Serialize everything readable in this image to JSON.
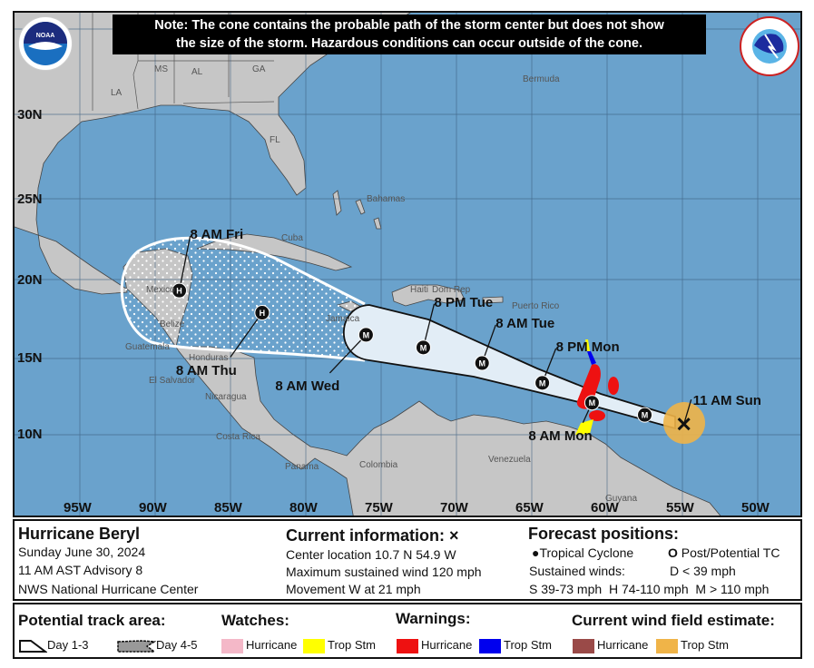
{
  "note": {
    "line1": "Note: The cone contains the probable path of the storm center but does not show",
    "line2": "the size of the storm. Hazardous conditions can occur outside of the cone."
  },
  "logos": {
    "noaa": "NOAA",
    "nws": "NATIONAL WEATHER SERVICE"
  },
  "colors": {
    "ocean": "#6aa2cc",
    "land": "#c6c6c6",
    "cone_day13": "#e2edf6",
    "watch_hurricane": "#f4b8c8",
    "watch_trop_stm": "#ffff00",
    "warn_hurricane": "#ee1111",
    "warn_trop_stm": "#0000ee",
    "wind_hurricane": "#9a4a48",
    "wind_trop_stm": "#f0b448"
  },
  "map": {
    "lat_labels": [
      "30N",
      "25N",
      "20N",
      "15N",
      "10N"
    ],
    "lon_labels": [
      "95W",
      "90W",
      "85W",
      "80W",
      "75W",
      "70W",
      "65W",
      "60W",
      "55W",
      "50W"
    ],
    "places": {
      "ms": "MS",
      "al": "AL",
      "ga": "GA",
      "la": "LA",
      "fl": "FL",
      "bermuda": "Bermuda",
      "bahamas": "Bahamas",
      "cuba": "Cuba",
      "haiti": "Haiti",
      "dom": "Dom Rep",
      "puerto_rico": "Puerto Rico",
      "jamaica": "Jamaica",
      "mexico": "Mexico",
      "belize": "Belize",
      "guatemala": "Guatemala",
      "honduras": "Honduras",
      "el_salvador": "El Salvador",
      "nicaragua": "Nicaragua",
      "costa_rica": "Costa Rica",
      "panama": "Panama",
      "colombia": "Colombia",
      "venezuela": "Venezuela",
      "guyana": "Guyana"
    },
    "current": {
      "label": "11 AM Sun",
      "lat": 10.7,
      "lon": -54.9,
      "icon": "x-mark"
    },
    "track": [
      {
        "label": "",
        "symbol": "M",
        "lat": 11.3,
        "lon": -57.5
      },
      {
        "label": "8 AM Mon",
        "symbol": "M",
        "lat": 12.1,
        "lon": -61.0
      },
      {
        "label": "8 PM Mon",
        "symbol": "M",
        "lat": 13.4,
        "lon": -64.3
      },
      {
        "label": "8 AM Tue",
        "symbol": "M",
        "lat": 14.7,
        "lon": -68.3
      },
      {
        "label": "8 PM Tue",
        "symbol": "M",
        "lat": 15.7,
        "lon": -72.2
      },
      {
        "label": "8 AM Wed",
        "symbol": "M",
        "lat": 16.5,
        "lon": -76.0
      },
      {
        "label": "8 AM Thu",
        "symbol": "H",
        "lat": 17.9,
        "lon": -82.9
      },
      {
        "label": "8 AM Fri",
        "symbol": "H",
        "lat": 19.3,
        "lon": -88.4
      }
    ]
  },
  "info": {
    "storm_name": "Hurricane Beryl",
    "date": "Sunday June 30, 2024",
    "advisory": "11 AM AST Advisory 8",
    "center": "NWS National Hurricane Center",
    "current_title": "Current information: ×",
    "location": "Center location 10.7 N 54.9 W",
    "max_wind": "Maximum sustained wind 120 mph",
    "movement": "Movement W at 21 mph",
    "forecast_title": "Forecast positions:",
    "tc": "Tropical Cyclone",
    "post_tc": "Post/Potential TC",
    "sustained": "Sustained winds:",
    "d": "D < 39 mph",
    "shm": "S 39-73 mph  H 74-110 mph  M > 110 mph"
  },
  "legend": {
    "track_title": "Potential track area:",
    "day13": "Day 1-3",
    "day45": "Day 4-5",
    "watches_title": "Watches:",
    "warnings_title": "Warnings:",
    "wind_title": "Current wind field estimate:",
    "hurricane": "Hurricane",
    "trop_stm": "Trop Stm"
  }
}
